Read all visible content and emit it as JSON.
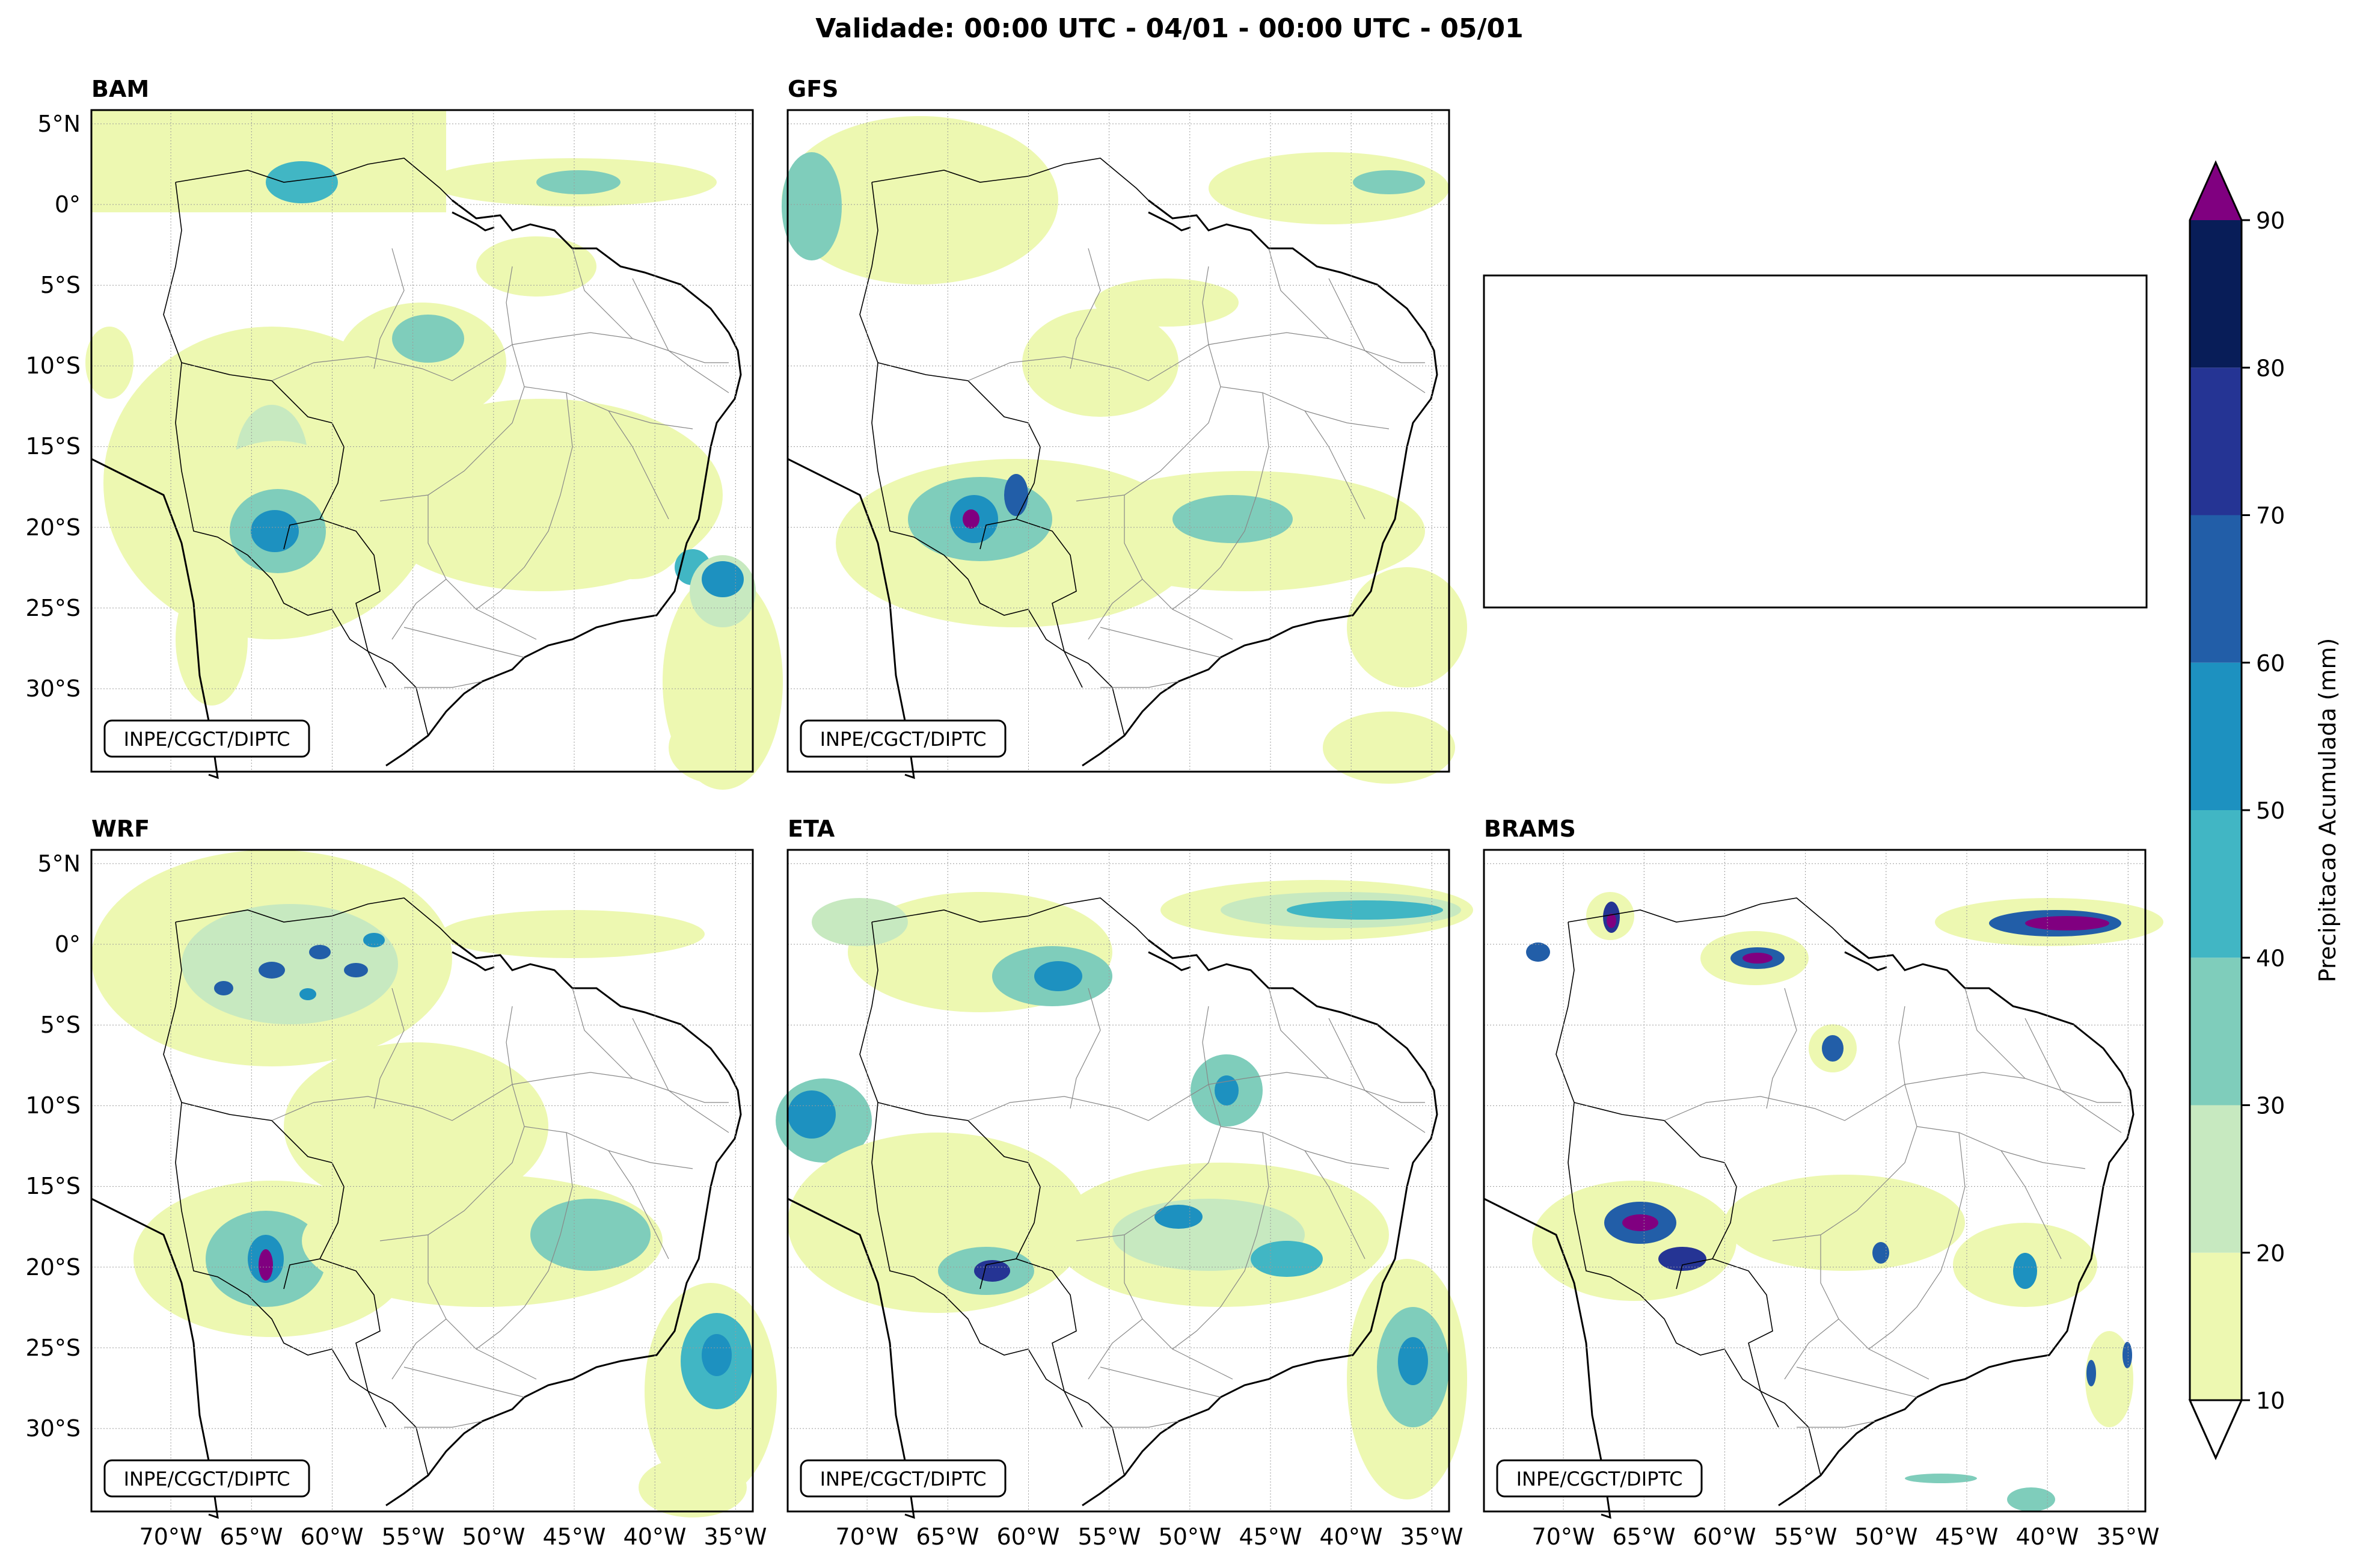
{
  "figure": {
    "title": "Validade: 00:00 UTC - 04/01 - 00:00 UTC - 05/01",
    "credit": "INPE/CGCT/DIPTC"
  },
  "panels": [
    {
      "id": "bam",
      "title": "BAM"
    },
    {
      "id": "gfs",
      "title": "GFS"
    },
    {
      "id": "wrf",
      "title": "WRF"
    },
    {
      "id": "eta",
      "title": "ETA"
    },
    {
      "id": "brams",
      "title": "BRAMS"
    }
  ],
  "axes": {
    "lat_labels": [
      "5°N",
      "0°",
      "5°S",
      "10°S",
      "15°S",
      "20°S",
      "25°S",
      "30°S"
    ],
    "lon_labels": [
      "70°W",
      "65°W",
      "60°W",
      "55°W",
      "50°W",
      "45°W",
      "40°W",
      "35°W"
    ],
    "lat_range": [
      -35,
      6
    ],
    "lon_range": [
      -74,
      -33
    ]
  },
  "colorbar": {
    "label": "Precipitacao Acumulada (mm)",
    "ticks": [
      "10",
      "20",
      "30",
      "40",
      "50",
      "60",
      "70",
      "80",
      "90"
    ],
    "bins": [
      {
        "from": 10,
        "to": 20,
        "color": "#edf8b1"
      },
      {
        "from": 20,
        "to": 30,
        "color": "#c7e9c0"
      },
      {
        "from": 30,
        "to": 40,
        "color": "#7fcdbb"
      },
      {
        "from": 40,
        "to": 50,
        "color": "#41b6c4"
      },
      {
        "from": 50,
        "to": 60,
        "color": "#1d91c0"
      },
      {
        "from": 60,
        "to": 70,
        "color": "#225ea8"
      },
      {
        "from": 70,
        "to": 80,
        "color": "#253494"
      },
      {
        "from": 80,
        "to": 90,
        "color": "#081d58"
      }
    ],
    "over_color": "#800080",
    "under_color": "#ffffff"
  }
}
